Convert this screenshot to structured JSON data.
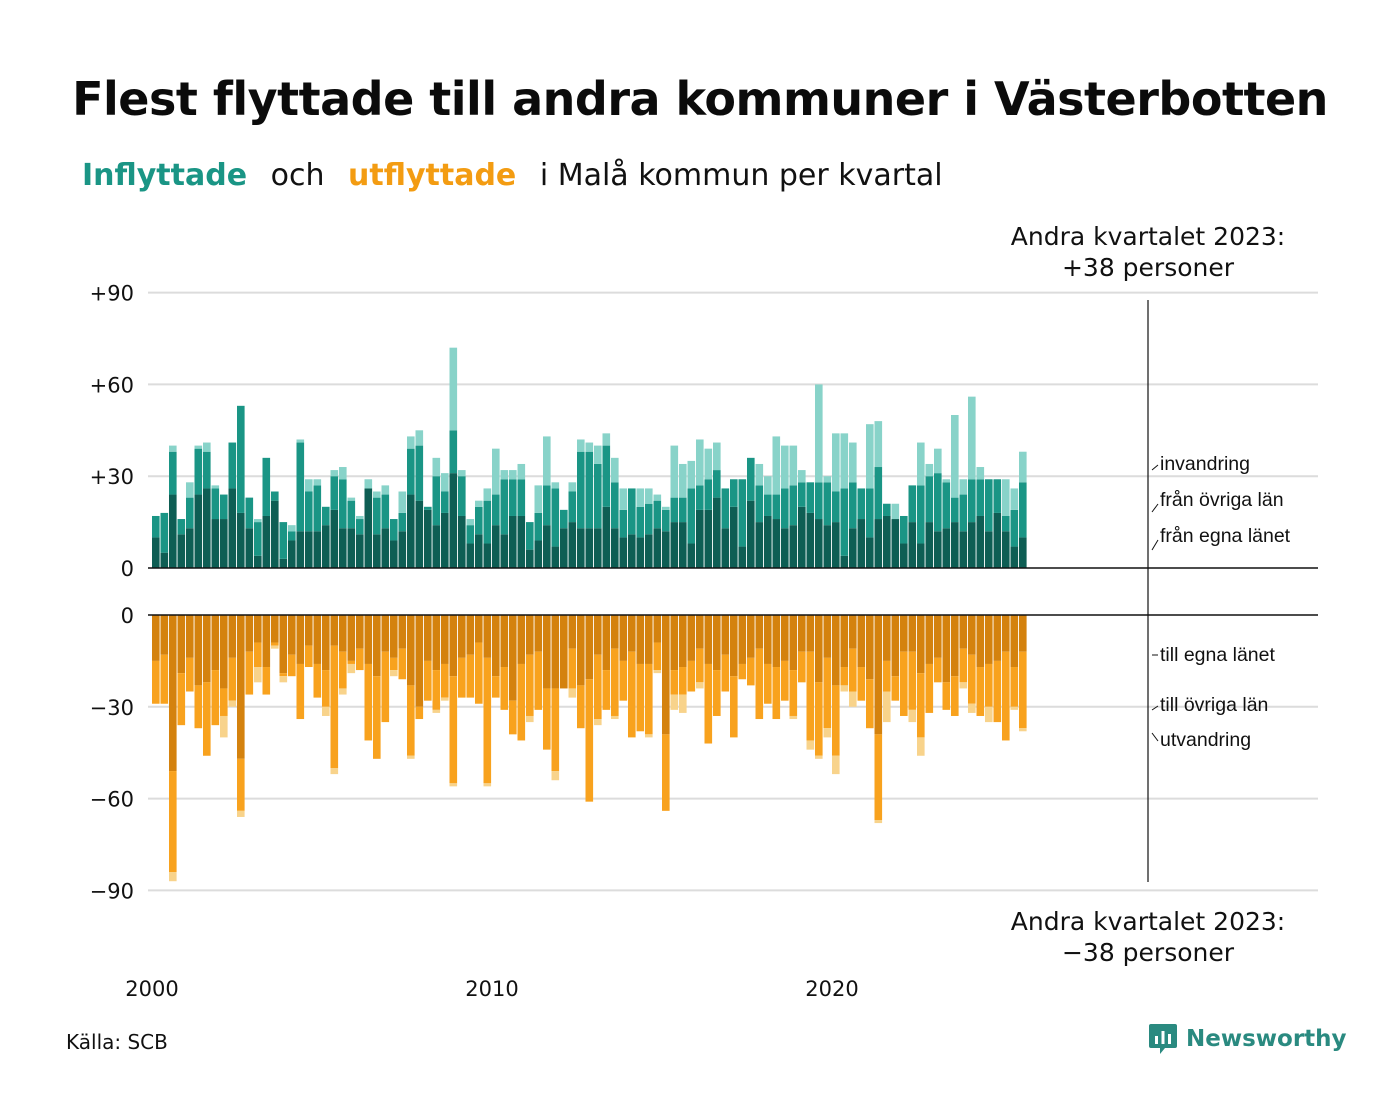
{
  "title": "Flest flyttade till andra kommuner i Västerbotten",
  "subtitle": {
    "part1": "Inflyttade",
    "part2": "och",
    "part3": "utflyttade",
    "part4": "i Malå  kommun  per  kvartal"
  },
  "annotation_top": {
    "line1": "Andra kvartalet 2023:",
    "line2": "+38 personer"
  },
  "annotation_bottom": {
    "line1": "Andra kvartalet 2023:",
    "line2": "−38 personer"
  },
  "source": "Källa: SCB",
  "brand": "Newsworthy",
  "colors": {
    "in_egna": "#0e5e54",
    "in_ovriga": "#1a9585",
    "in_invandring": "#88d3c9",
    "out_egna": "#d4820e",
    "out_ovriga": "#f8a21e",
    "out_utvandring": "#f8d38b",
    "grid": "#dcdcdc",
    "axis": "#111111"
  },
  "chart_data": {
    "type": "bar",
    "stacked": true,
    "x_start": "2000 Q1",
    "x_tick_labels": [
      "2000",
      "2010",
      "2020"
    ],
    "top_axis": {
      "ticks": [
        "0",
        "+30",
        "+60",
        "+90"
      ],
      "ylim": [
        0,
        90
      ]
    },
    "bottom_axis": {
      "ticks": [
        "0",
        "−30",
        "−60",
        "−90"
      ],
      "ylim": [
        -90,
        0
      ]
    },
    "inflow_series": [
      {
        "name": "från egna länet",
        "values": [
          10,
          5,
          24,
          11,
          13,
          24,
          26,
          16,
          16,
          26,
          18,
          13,
          4,
          17,
          22,
          3,
          9,
          12,
          12,
          12,
          14,
          19,
          13,
          13,
          11,
          26,
          11,
          13,
          9,
          12,
          24,
          22,
          19,
          14,
          18,
          31,
          17,
          8,
          11,
          8,
          14,
          11,
          17,
          17,
          6,
          9,
          14,
          7,
          13,
          15,
          13,
          13,
          13,
          20,
          13,
          10,
          11,
          10,
          11,
          13,
          12,
          15,
          15,
          8,
          19,
          19,
          23,
          13,
          20,
          7,
          22,
          15,
          17,
          16,
          13,
          14,
          20,
          18,
          16,
          14,
          15,
          4,
          13,
          16,
          10,
          16,
          17,
          16,
          8,
          15,
          8,
          15,
          12,
          13,
          15,
          12,
          15,
          17,
          12,
          18,
          12,
          7,
          10
        ]
      },
      {
        "name": "från övriga län",
        "values": [
          7,
          13,
          14,
          5,
          10,
          15,
          12,
          10,
          8,
          15,
          35,
          10,
          11,
          19,
          3,
          12,
          3,
          29,
          13,
          15,
          6,
          11,
          16,
          9,
          5,
          0,
          12,
          11,
          7,
          6,
          15,
          18,
          1,
          16,
          7,
          14,
          13,
          6,
          9,
          14,
          10,
          18,
          12,
          12,
          9,
          9,
          13,
          19,
          6,
          10,
          25,
          25,
          21,
          20,
          15,
          9,
          15,
          10,
          10,
          9,
          7,
          8,
          8,
          18,
          8,
          10,
          9,
          13,
          9,
          22,
          14,
          12,
          7,
          8,
          13,
          13,
          8,
          10,
          12,
          14,
          10,
          22,
          15,
          10,
          16,
          17,
          4,
          0,
          9,
          12,
          19,
          15,
          19,
          15,
          8,
          12,
          14,
          12,
          17,
          11,
          5,
          12,
          18
        ]
      },
      {
        "name": "invandring",
        "values": [
          0,
          0,
          2,
          0,
          5,
          1,
          3,
          1,
          0,
          0,
          0,
          0,
          1,
          0,
          0,
          0,
          2,
          1,
          4,
          2,
          0,
          2,
          4,
          1,
          1,
          3,
          2,
          3,
          0,
          7,
          4,
          5,
          0,
          6,
          6,
          27,
          2,
          2,
          2,
          4,
          15,
          3,
          3,
          5,
          0,
          9,
          16,
          2,
          0,
          3,
          4,
          3,
          6,
          4,
          8,
          7,
          0,
          6,
          5,
          2,
          1,
          17,
          11,
          9,
          15,
          10,
          9,
          0,
          0,
          0,
          0,
          7,
          6,
          19,
          14,
          13,
          4,
          0,
          32,
          2,
          19,
          18,
          13,
          0,
          21,
          15,
          0,
          5,
          0,
          0,
          14,
          4,
          8,
          1,
          27,
          5,
          27,
          4,
          0,
          0,
          12,
          7,
          10
        ]
      }
    ],
    "outflow_series": [
      {
        "name": "till egna länet",
        "values": [
          15,
          13,
          51,
          19,
          14,
          23,
          22,
          18,
          24,
          14,
          47,
          12,
          9,
          17,
          9,
          19,
          13,
          16,
          10,
          16,
          18,
          10,
          12,
          15,
          11,
          16,
          20,
          12,
          14,
          11,
          23,
          30,
          15,
          18,
          16,
          20,
          14,
          13,
          9,
          14,
          20,
          17,
          28,
          16,
          13,
          12,
          24,
          24,
          24,
          11,
          23,
          21,
          13,
          18,
          11,
          15,
          12,
          16,
          16,
          9,
          39,
          18,
          17,
          15,
          11,
          16,
          18,
          13,
          20,
          16,
          14,
          11,
          16,
          17,
          15,
          18,
          12,
          12,
          22,
          14,
          23,
          17,
          11,
          17,
          21,
          39,
          15,
          20,
          12,
          12,
          19,
          16,
          14,
          22,
          20,
          11,
          13,
          17,
          16,
          15,
          12,
          17,
          12
        ]
      },
      {
        "name": "till övriga län",
        "values": [
          14,
          16,
          33,
          17,
          11,
          14,
          24,
          18,
          9,
          14,
          17,
          14,
          8,
          9,
          1,
          1,
          7,
          18,
          7,
          11,
          12,
          40,
          12,
          1,
          7,
          25,
          27,
          23,
          4,
          10,
          23,
          4,
          13,
          13,
          11,
          35,
          13,
          14,
          20,
          41,
          7,
          14,
          11,
          25,
          20,
          19,
          20,
          27,
          0,
          13,
          14,
          40,
          21,
          13,
          22,
          13,
          28,
          22,
          23,
          9,
          25,
          8,
          9,
          10,
          11,
          26,
          15,
          12,
          20,
          5,
          9,
          23,
          13,
          17,
          13,
          15,
          10,
          29,
          24,
          23,
          23,
          6,
          14,
          11,
          16,
          28,
          10,
          8,
          21,
          19,
          21,
          16,
          8,
          9,
          13,
          11,
          16,
          16,
          14,
          20,
          29,
          13,
          25
        ]
      },
      {
        "name": "utvandring",
        "values": [
          0,
          0,
          3,
          0,
          0,
          0,
          0,
          0,
          7,
          2,
          2,
          0,
          5,
          0,
          1,
          2,
          0,
          0,
          0,
          0,
          3,
          2,
          2,
          3,
          0,
          0,
          0,
          0,
          2,
          0,
          1,
          0,
          0,
          1,
          1,
          1,
          0,
          0,
          0,
          1,
          0,
          0,
          0,
          0,
          2,
          0,
          0,
          3,
          0,
          3,
          0,
          0,
          2,
          0,
          1,
          0,
          0,
          0,
          1,
          1,
          0,
          5,
          6,
          0,
          2,
          0,
          0,
          0,
          0,
          0,
          0,
          0,
          0,
          0,
          0,
          1,
          0,
          3,
          1,
          3,
          6,
          2,
          5,
          0,
          0,
          1,
          10,
          0,
          0,
          4,
          6,
          0,
          0,
          0,
          0,
          2,
          3,
          0,
          5,
          0,
          0,
          1,
          1
        ]
      }
    ]
  }
}
